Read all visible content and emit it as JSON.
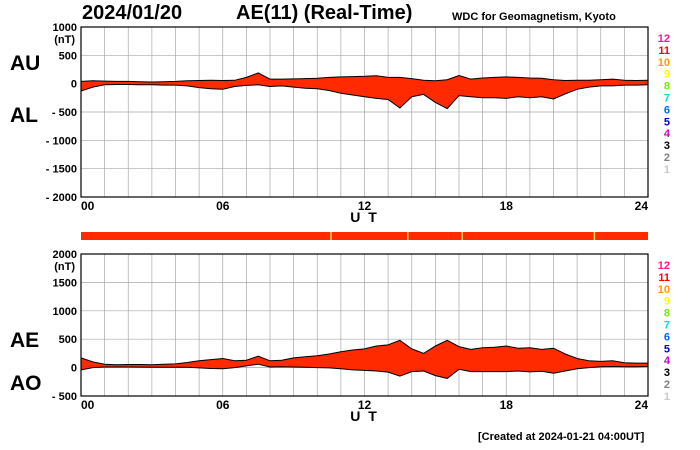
{
  "header": {
    "date": "2024/01/20",
    "title": "AE(11) (Real-Time)",
    "source": "WDC for Geomagnetism, Kyoto"
  },
  "footer": {
    "created": "[Created at 2024-01-21 04:00UT]"
  },
  "colors": {
    "fill": "#ff2a00",
    "outline": "#000000",
    "grid": "#a8a8a8",
    "bar_main": "#ff2a00",
    "bar_minor": "#ffdd55"
  },
  "station_count_scale": [
    {
      "label": "12",
      "color": "#ff1493"
    },
    {
      "label": "11",
      "color": "#ff0000"
    },
    {
      "label": "10",
      "color": "#ff9900"
    },
    {
      "label": "9",
      "color": "#ffff00"
    },
    {
      "label": "8",
      "color": "#77ee00"
    },
    {
      "label": "7",
      "color": "#00dddd"
    },
    {
      "label": "6",
      "color": "#0066ff"
    },
    {
      "label": "5",
      "color": "#0000cc"
    },
    {
      "label": "4",
      "color": "#cc00cc"
    },
    {
      "label": "3",
      "color": "#000000"
    },
    {
      "label": "2",
      "color": "#808080"
    },
    {
      "label": "1",
      "color": "#c8c8c8"
    }
  ],
  "chart_data": [
    {
      "type": "area",
      "panel": "AU-AL",
      "index_labels": [
        "AU",
        "AL"
      ],
      "ylabel": "(nT)",
      "xlabel": "U T",
      "ylim": [
        -2000,
        1000
      ],
      "y_ticks": [
        "1000",
        "500",
        "0",
        "- 500",
        "- 1000",
        "- 1500",
        "- 2000"
      ],
      "x_ticks": [
        "00",
        "06",
        "12",
        "18",
        "24"
      ],
      "xlim": [
        0,
        24
      ],
      "grid": true,
      "x": [
        0,
        0.5,
        1,
        1.5,
        2,
        2.5,
        3,
        3.5,
        4,
        4.5,
        5,
        5.5,
        6,
        6.5,
        7,
        7.5,
        8,
        8.5,
        9,
        9.5,
        10,
        10.5,
        11,
        11.5,
        12,
        12.5,
        13,
        13.5,
        14,
        14.5,
        15,
        15.5,
        16,
        16.5,
        17,
        17.5,
        18,
        18.5,
        19,
        19.5,
        20,
        20.5,
        21,
        21.5,
        22,
        22.5,
        23,
        23.5,
        24
      ],
      "series": [
        {
          "name": "AU",
          "values": [
            40,
            50,
            45,
            40,
            40,
            35,
            30,
            35,
            40,
            50,
            55,
            60,
            55,
            60,
            110,
            190,
            80,
            80,
            85,
            90,
            95,
            110,
            120,
            125,
            130,
            140,
            110,
            110,
            90,
            60,
            50,
            70,
            145,
            80,
            100,
            110,
            120,
            110,
            100,
            95,
            70,
            55,
            60,
            60,
            70,
            80,
            60,
            55,
            60
          ]
        },
        {
          "name": "AL",
          "values": [
            -130,
            -60,
            -20,
            -15,
            -15,
            -20,
            -20,
            -25,
            -25,
            -40,
            -70,
            -90,
            -100,
            -50,
            -30,
            -20,
            -50,
            -40,
            -60,
            -80,
            -90,
            -120,
            -170,
            -200,
            -230,
            -260,
            -280,
            -430,
            -230,
            -190,
            -330,
            -440,
            -210,
            -230,
            -250,
            -250,
            -260,
            -230,
            -250,
            -230,
            -270,
            -180,
            -100,
            -60,
            -40,
            -40,
            -25,
            -25,
            -20
          ]
        }
      ]
    },
    {
      "type": "area",
      "panel": "AE-AO",
      "index_labels": [
        "AE",
        "AO"
      ],
      "ylabel": "(nT)",
      "xlabel": "U T",
      "ylim": [
        -500,
        2000
      ],
      "y_ticks": [
        "2000",
        "1500",
        "1000",
        "500",
        "0",
        "- 500"
      ],
      "x_ticks": [
        "00",
        "06",
        "12",
        "18",
        "24"
      ],
      "xlim": [
        0,
        24
      ],
      "grid": true,
      "x": [
        0,
        0.5,
        1,
        1.5,
        2,
        2.5,
        3,
        3.5,
        4,
        4.5,
        5,
        5.5,
        6,
        6.5,
        7,
        7.5,
        8,
        8.5,
        9,
        9.5,
        10,
        10.5,
        11,
        11.5,
        12,
        12.5,
        13,
        13.5,
        14,
        14.5,
        15,
        15.5,
        16,
        16.5,
        17,
        17.5,
        18,
        18.5,
        19,
        19.5,
        20,
        20.5,
        21,
        21.5,
        22,
        22.5,
        23,
        23.5,
        24
      ],
      "series": [
        {
          "name": "AE",
          "values": [
            170,
            100,
            60,
            50,
            55,
            55,
            50,
            60,
            65,
            90,
            120,
            140,
            160,
            120,
            130,
            200,
            120,
            130,
            170,
            190,
            210,
            240,
            280,
            310,
            330,
            380,
            400,
            480,
            330,
            250,
            380,
            480,
            370,
            320,
            350,
            360,
            380,
            340,
            350,
            320,
            340,
            240,
            160,
            120,
            110,
            120,
            85,
            80,
            80
          ]
        },
        {
          "name": "AO",
          "values": [
            -40,
            0,
            10,
            10,
            10,
            8,
            5,
            5,
            5,
            5,
            -5,
            -15,
            -20,
            0,
            30,
            60,
            10,
            15,
            10,
            5,
            0,
            -5,
            -20,
            -40,
            -50,
            -60,
            -80,
            -150,
            -70,
            -60,
            -140,
            -190,
            -30,
            -70,
            -70,
            -70,
            -70,
            -60,
            -75,
            -65,
            -100,
            -60,
            -20,
            0,
            15,
            20,
            15,
            15,
            20
          ]
        }
      ]
    }
  ]
}
